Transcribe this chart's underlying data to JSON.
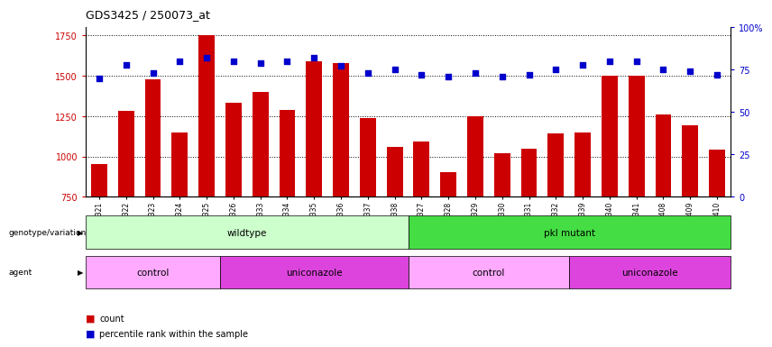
{
  "title": "GDS3425 / 250073_at",
  "samples": [
    "GSM299321",
    "GSM299322",
    "GSM299323",
    "GSM299324",
    "GSM299325",
    "GSM299326",
    "GSM299333",
    "GSM299334",
    "GSM299335",
    "GSM299336",
    "GSM299337",
    "GSM299338",
    "GSM299327",
    "GSM299328",
    "GSM299329",
    "GSM299330",
    "GSM299331",
    "GSM299332",
    "GSM299339",
    "GSM299340",
    "GSM299341",
    "GSM299408",
    "GSM299409",
    "GSM299410"
  ],
  "counts": [
    950,
    1280,
    1480,
    1150,
    1750,
    1330,
    1400,
    1290,
    1590,
    1580,
    1240,
    1060,
    1090,
    900,
    1250,
    1020,
    1050,
    1140,
    1150,
    1500,
    1500,
    1260,
    1190,
    1040
  ],
  "percentiles": [
    70,
    78,
    73,
    80,
    82,
    80,
    79,
    80,
    82,
    77,
    73,
    75,
    72,
    71,
    73,
    71,
    72,
    75,
    78,
    80,
    80,
    75,
    74,
    72
  ],
  "ylim_left": [
    750,
    1800
  ],
  "ylim_right": [
    0,
    100
  ],
  "yticks_left": [
    750,
    1000,
    1250,
    1500,
    1750
  ],
  "yticks_right": [
    0,
    25,
    50,
    75,
    100
  ],
  "bar_color": "#cc0000",
  "dot_color": "#0000cc",
  "genotype_groups": [
    {
      "label": "wildtype",
      "start": 0,
      "end": 12,
      "color": "#ccffcc"
    },
    {
      "label": "pkl mutant",
      "start": 12,
      "end": 24,
      "color": "#44dd44"
    }
  ],
  "agent_groups": [
    {
      "label": "control",
      "start": 0,
      "end": 5,
      "color": "#ffaaff"
    },
    {
      "label": "uniconazole",
      "start": 5,
      "end": 12,
      "color": "#dd44dd"
    },
    {
      "label": "control",
      "start": 12,
      "end": 18,
      "color": "#ffaaff"
    },
    {
      "label": "uniconazole",
      "start": 18,
      "end": 24,
      "color": "#dd44dd"
    }
  ]
}
